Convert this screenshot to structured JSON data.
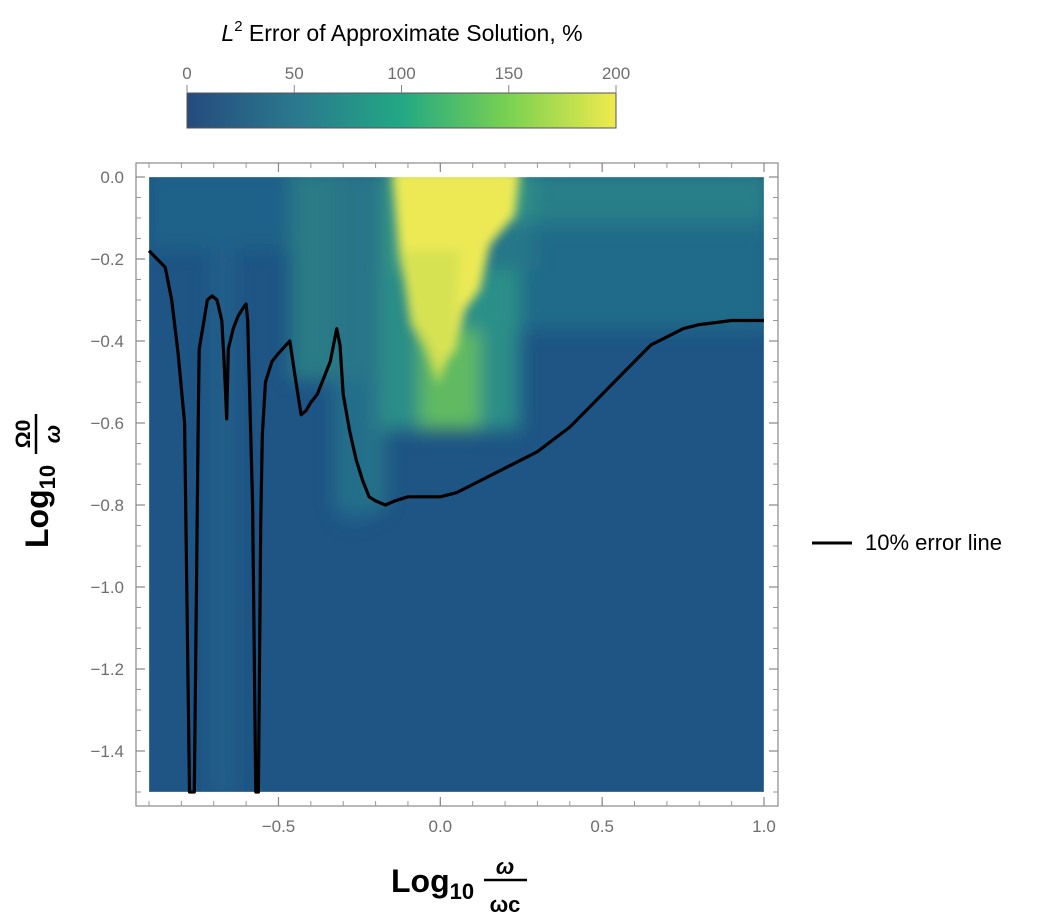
{
  "chart_data": {
    "type": "heatmap",
    "colorbar": {
      "title_prefix": "L",
      "title_superscript": "2",
      "title_rest": " Error of Approximate Solution, %",
      "ticks": [
        0,
        50,
        100,
        150,
        200
      ],
      "range": [
        0,
        200
      ],
      "colormap": "viridis"
    },
    "xlabel": {
      "main": "Log",
      "sub": "10",
      "frac_num": "ω",
      "frac_den": "ωc"
    },
    "ylabel": {
      "main": "Log",
      "sub": "10",
      "frac_num": "Ω0",
      "frac_den": "ω"
    },
    "xlim": [
      -0.9,
      1.0
    ],
    "ylim": [
      -1.5,
      0.0
    ],
    "x_ticks": [
      -0.5,
      0.0,
      0.5,
      1.0
    ],
    "x_tick_labels": [
      "−0.5",
      "0.0",
      "0.5",
      "1.0"
    ],
    "y_ticks": [
      0.0,
      -0.2,
      -0.4,
      -0.6,
      -0.8,
      -1.0,
      -1.2,
      -1.4
    ],
    "y_tick_labels": [
      "0.0",
      "−0.2",
      "−0.4",
      "−0.6",
      "−0.8",
      "−1.0",
      "−1.2",
      "−1.4"
    ],
    "legend": {
      "position": "right",
      "entries": [
        {
          "label": "10% error line",
          "color": "#000000"
        }
      ]
    },
    "contour_10pct": {
      "x": [
        -0.9,
        -0.85,
        -0.83,
        -0.81,
        -0.79,
        -0.775,
        -0.76,
        -0.748,
        -0.745,
        -0.73,
        -0.72,
        -0.705,
        -0.69,
        -0.675,
        -0.67,
        -0.665,
        -0.66,
        -0.655,
        -0.64,
        -0.625,
        -0.61,
        -0.6,
        -0.595,
        -0.58,
        -0.57,
        -0.562,
        -0.555,
        -0.55,
        -0.54,
        -0.52,
        -0.5,
        -0.465,
        -0.45,
        -0.43,
        -0.415,
        -0.4,
        -0.38,
        -0.36,
        -0.34,
        -0.32,
        -0.31,
        -0.3,
        -0.28,
        -0.26,
        -0.24,
        -0.22,
        -0.2,
        -0.17,
        -0.14,
        -0.1,
        -0.05,
        0.0,
        0.05,
        0.1,
        0.15,
        0.2,
        0.25,
        0.3,
        0.35,
        0.4,
        0.45,
        0.5,
        0.55,
        0.6,
        0.65,
        0.7,
        0.75,
        0.8,
        0.85,
        0.9,
        1.0
      ],
      "y": [
        -0.18,
        -0.22,
        -0.3,
        -0.43,
        -0.6,
        -1.5,
        -1.5,
        -0.6,
        -0.42,
        -0.35,
        -0.3,
        -0.29,
        -0.3,
        -0.35,
        -0.42,
        -0.5,
        -0.59,
        -0.42,
        -0.37,
        -0.34,
        -0.32,
        -0.31,
        -0.35,
        -0.8,
        -1.5,
        -1.5,
        -0.85,
        -0.63,
        -0.5,
        -0.45,
        -0.43,
        -0.4,
        -0.48,
        -0.58,
        -0.57,
        -0.55,
        -0.53,
        -0.49,
        -0.45,
        -0.37,
        -0.41,
        -0.53,
        -0.62,
        -0.69,
        -0.74,
        -0.78,
        -0.79,
        -0.8,
        -0.79,
        -0.78,
        -0.78,
        -0.78,
        -0.77,
        -0.75,
        -0.73,
        -0.71,
        -0.69,
        -0.67,
        -0.64,
        -0.61,
        -0.57,
        -0.53,
        -0.49,
        -0.45,
        -0.41,
        -0.39,
        -0.37,
        -0.36,
        -0.355,
        -0.35,
        -0.35
      ]
    }
  }
}
